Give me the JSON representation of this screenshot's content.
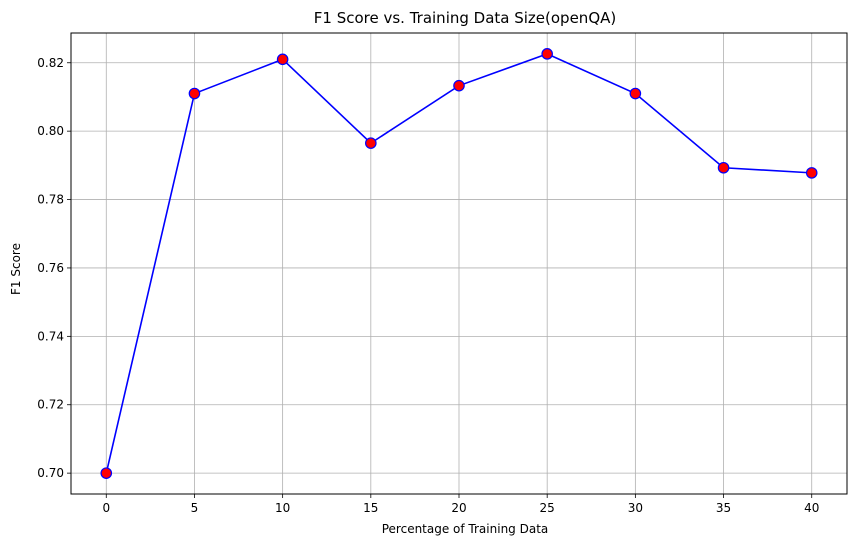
{
  "chart_data": {
    "type": "line",
    "title": "F1 Score vs. Training Data Size(openQA)",
    "xlabel": "Percentage of Training Data",
    "ylabel": "F1 Score",
    "x": [
      0,
      5,
      10,
      15,
      20,
      25,
      30,
      35,
      40
    ],
    "series": [
      {
        "values": [
          0.7,
          0.811,
          0.821,
          0.7965,
          0.8133,
          0.8226,
          0.811,
          0.7893,
          0.7878
        ],
        "line_color": "#0000ff",
        "marker_face_color": "#ff0000",
        "marker_edge_color": "#0000ff",
        "marker": "circle"
      }
    ],
    "xticks": [
      0,
      5,
      10,
      15,
      20,
      25,
      30,
      35,
      40
    ],
    "xtick_labels": [
      "0",
      "5",
      "10",
      "15",
      "20",
      "25",
      "30",
      "35",
      "40"
    ],
    "yticks": [
      0.7,
      0.72,
      0.74,
      0.76,
      0.78,
      0.8,
      0.82
    ],
    "ytick_labels": [
      "0.70",
      "0.72",
      "0.74",
      "0.76",
      "0.78",
      "0.80",
      "0.82"
    ],
    "xlim": [
      -2,
      42
    ],
    "ylim": [
      0.6939,
      0.8287
    ],
    "grid": true,
    "grid_color": "#b0b0b0"
  }
}
